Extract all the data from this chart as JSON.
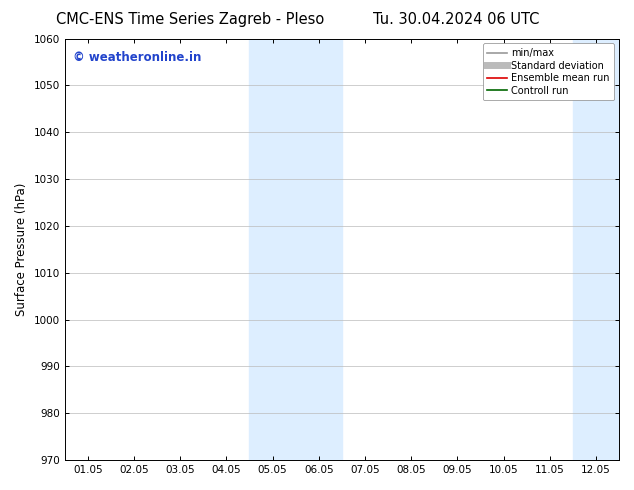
{
  "title_left": "CMC-ENS Time Series Zagreb - Pleso",
  "title_right": "Tu. 30.04.2024 06 UTC",
  "ylabel": "Surface Pressure (hPa)",
  "ylim": [
    970,
    1060
  ],
  "yticks": [
    970,
    980,
    990,
    1000,
    1010,
    1020,
    1030,
    1040,
    1050,
    1060
  ],
  "xtick_labels": [
    "01.05",
    "02.05",
    "03.05",
    "04.05",
    "05.05",
    "06.05",
    "07.05",
    "08.05",
    "09.05",
    "10.05",
    "11.05",
    "12.05"
  ],
  "xtick_positions": [
    0,
    1,
    2,
    3,
    4,
    5,
    6,
    7,
    8,
    9,
    10,
    11
  ],
  "xlim": [
    -0.5,
    11.5
  ],
  "shaded_bands": [
    {
      "xmin": 3.5,
      "xmax": 5.5,
      "color": "#ddeeff"
    },
    {
      "xmin": 10.5,
      "xmax": 12.5,
      "color": "#ddeeff"
    }
  ],
  "watermark_text": "© weatheronline.in",
  "watermark_color": "#2244cc",
  "legend_entries": [
    {
      "label": "min/max",
      "color": "#999999",
      "linewidth": 1.2,
      "linestyle": "-"
    },
    {
      "label": "Standard deviation",
      "color": "#bbbbbb",
      "linewidth": 5,
      "linestyle": "-"
    },
    {
      "label": "Ensemble mean run",
      "color": "#dd0000",
      "linewidth": 1.2,
      "linestyle": "-"
    },
    {
      "label": "Controll run",
      "color": "#006600",
      "linewidth": 1.2,
      "linestyle": "-"
    }
  ],
  "bg_color": "#ffffff",
  "grid_color": "#bbbbbb",
  "title_fontsize": 10.5,
  "ylabel_fontsize": 8.5,
  "tick_fontsize": 7.5,
  "watermark_fontsize": 8.5,
  "legend_fontsize": 7.0
}
